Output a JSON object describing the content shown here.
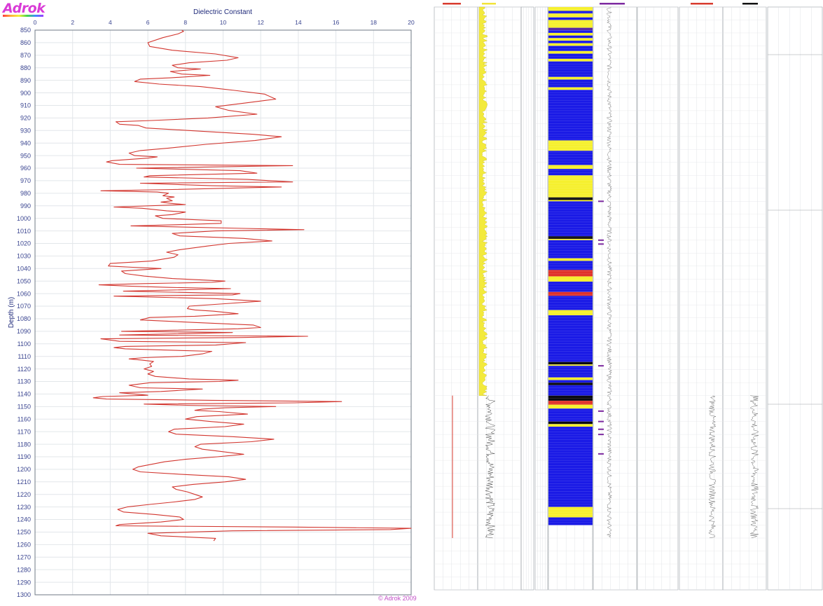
{
  "logo": {
    "text": "Adrok"
  },
  "copyright": "© Adrok 2009",
  "chart_data": {
    "type": "line",
    "title": "Dielectric Constant",
    "xlabel": "Dielectric Constant",
    "ylabel": "Depth (m)",
    "xlim": [
      0,
      20
    ],
    "ylim": [
      1300,
      850
    ],
    "x_ticks": [
      0,
      2,
      4,
      6,
      8,
      10,
      12,
      14,
      16,
      18,
      20
    ],
    "y_ticks": [
      850,
      860,
      870,
      880,
      890,
      900,
      910,
      920,
      930,
      940,
      950,
      960,
      970,
      980,
      990,
      1000,
      1010,
      1020,
      1030,
      1040,
      1050,
      1060,
      1070,
      1080,
      1090,
      1100,
      1110,
      1120,
      1130,
      1140,
      1150,
      1160,
      1170,
      1180,
      1190,
      1200,
      1210,
      1220,
      1230,
      1240,
      1250,
      1260,
      1270,
      1280,
      1290,
      1300
    ],
    "grid": true,
    "color": "#d2352e",
    "series": [
      {
        "points": [
          [
            7.8,
            850
          ],
          [
            7.9,
            851
          ],
          [
            7.6,
            853
          ],
          [
            6.8,
            856
          ],
          [
            6.0,
            860
          ],
          [
            6.1,
            863
          ],
          [
            7.3,
            866
          ],
          [
            9.6,
            869
          ],
          [
            10.8,
            872
          ],
          [
            10.2,
            874
          ],
          [
            8.2,
            876
          ],
          [
            7.3,
            878
          ],
          [
            7.6,
            880
          ],
          [
            8.8,
            881
          ],
          [
            7.2,
            883
          ],
          [
            7.8,
            885
          ],
          [
            9.3,
            886
          ],
          [
            7.2,
            888
          ],
          [
            5.6,
            889
          ],
          [
            5.3,
            891
          ],
          [
            6.6,
            893
          ],
          [
            8.8,
            895
          ],
          [
            10.6,
            898
          ],
          [
            12.2,
            901
          ],
          [
            12.8,
            905
          ],
          [
            11.2,
            908
          ],
          [
            9.6,
            911
          ],
          [
            10.3,
            914
          ],
          [
            11.8,
            917
          ],
          [
            9.2,
            920
          ],
          [
            6.2,
            922
          ],
          [
            4.3,
            923
          ],
          [
            4.5,
            925
          ],
          [
            5.5,
            926
          ],
          [
            5.9,
            928
          ],
          [
            8.2,
            930
          ],
          [
            11.6,
            933
          ],
          [
            13.1,
            935
          ],
          [
            11.7,
            938
          ],
          [
            9.1,
            941
          ],
          [
            7.1,
            944
          ],
          [
            5.6,
            946
          ],
          [
            5.0,
            948
          ],
          [
            5.3,
            950
          ],
          [
            6.5,
            951
          ],
          [
            6.0,
            952
          ],
          [
            4.1,
            954
          ],
          [
            3.8,
            955
          ],
          [
            4.5,
            957
          ],
          [
            13.7,
            958
          ],
          [
            5.4,
            960
          ],
          [
            10.9,
            962
          ],
          [
            11.8,
            964
          ],
          [
            6.1,
            966
          ],
          [
            5.8,
            967
          ],
          [
            11.3,
            969
          ],
          [
            13.7,
            971
          ],
          [
            5.6,
            972
          ],
          [
            9.4,
            974
          ],
          [
            13.1,
            975
          ],
          [
            7.3,
            977
          ],
          [
            3.5,
            978
          ],
          [
            6.5,
            979
          ],
          [
            7.1,
            980
          ],
          [
            6.8,
            982
          ],
          [
            7.4,
            983
          ],
          [
            7.0,
            984
          ],
          [
            7.3,
            986
          ],
          [
            6.7,
            987
          ],
          [
            7.2,
            988
          ],
          [
            8.0,
            989
          ],
          [
            4.2,
            991
          ],
          [
            5.7,
            992
          ],
          [
            7.0,
            994
          ],
          [
            8.0,
            995
          ],
          [
            7.3,
            997
          ],
          [
            6.4,
            998
          ],
          [
            6.8,
            1000
          ],
          [
            9.9,
            1002
          ],
          [
            9.9,
            1004
          ],
          [
            7.8,
            1005
          ],
          [
            5.1,
            1006
          ],
          [
            11.1,
            1008
          ],
          [
            14.3,
            1009
          ],
          [
            9.6,
            1010
          ],
          [
            7.3,
            1012
          ],
          [
            7.7,
            1014
          ],
          [
            11.1,
            1016
          ],
          [
            12.6,
            1018
          ],
          [
            10.3,
            1020
          ],
          [
            9.2,
            1022
          ],
          [
            7.7,
            1025
          ],
          [
            7.0,
            1027
          ],
          [
            7.6,
            1029
          ],
          [
            7.4,
            1031
          ],
          [
            6.2,
            1034
          ],
          [
            4.0,
            1036
          ],
          [
            3.9,
            1038
          ],
          [
            5.2,
            1039
          ],
          [
            6.7,
            1040
          ],
          [
            5.7,
            1041
          ],
          [
            4.6,
            1042
          ],
          [
            4.8,
            1044
          ],
          [
            5.8,
            1046
          ],
          [
            7.3,
            1048
          ],
          [
            10.1,
            1050
          ],
          [
            9.4,
            1051
          ],
          [
            5.8,
            1052
          ],
          [
            3.4,
            1053
          ],
          [
            5.0,
            1054
          ],
          [
            7.1,
            1055
          ],
          [
            10.4,
            1056
          ],
          [
            4.7,
            1058
          ],
          [
            10.9,
            1060
          ],
          [
            10.5,
            1061
          ],
          [
            4.2,
            1062
          ],
          [
            9.6,
            1064
          ],
          [
            12.0,
            1066
          ],
          [
            10.1,
            1068
          ],
          [
            8.2,
            1070
          ],
          [
            8.1,
            1072
          ],
          [
            8.5,
            1073
          ],
          [
            9.5,
            1074
          ],
          [
            10.8,
            1076
          ],
          [
            8.5,
            1078
          ],
          [
            6.1,
            1079
          ],
          [
            5.6,
            1081
          ],
          [
            8.5,
            1083
          ],
          [
            11.6,
            1085
          ],
          [
            12.0,
            1087
          ],
          [
            10.8,
            1088
          ],
          [
            4.6,
            1090
          ],
          [
            10.5,
            1091
          ],
          [
            4.5,
            1093
          ],
          [
            14.5,
            1094
          ],
          [
            10.8,
            1095
          ],
          [
            3.5,
            1096
          ],
          [
            4.5,
            1098
          ],
          [
            11.2,
            1099
          ],
          [
            9.6,
            1101
          ],
          [
            4.8,
            1102
          ],
          [
            4.2,
            1103
          ],
          [
            4.8,
            1104
          ],
          [
            7.0,
            1105
          ],
          [
            9.4,
            1106
          ],
          [
            8.9,
            1108
          ],
          [
            7.8,
            1110
          ],
          [
            5.8,
            1111
          ],
          [
            5.0,
            1112
          ],
          [
            5.7,
            1113
          ],
          [
            6.3,
            1114
          ],
          [
            6.1,
            1116
          ],
          [
            6.2,
            1118
          ],
          [
            5.8,
            1120
          ],
          [
            6.3,
            1122
          ],
          [
            6.0,
            1124
          ],
          [
            6.4,
            1126
          ],
          [
            8.2,
            1128
          ],
          [
            10.8,
            1129
          ],
          [
            9.8,
            1130
          ],
          [
            6.1,
            1131
          ],
          [
            5.0,
            1133
          ],
          [
            5.6,
            1135
          ],
          [
            8.9,
            1136
          ],
          [
            6.7,
            1138
          ],
          [
            4.5,
            1139
          ],
          [
            5.3,
            1140
          ],
          [
            6.0,
            1141
          ],
          [
            3.6,
            1142
          ],
          [
            3.1,
            1143
          ],
          [
            3.8,
            1144
          ],
          [
            9.4,
            1145
          ],
          [
            16.3,
            1146
          ],
          [
            13.8,
            1147
          ],
          [
            5.8,
            1148
          ],
          [
            8.1,
            1149
          ],
          [
            12.8,
            1150
          ],
          [
            10.1,
            1151
          ],
          [
            8.9,
            1152
          ],
          [
            8.5,
            1153
          ],
          [
            9.8,
            1154
          ],
          [
            11.3,
            1156
          ],
          [
            8.6,
            1158
          ],
          [
            8.0,
            1160
          ],
          [
            9.4,
            1162
          ],
          [
            11.1,
            1164
          ],
          [
            10.1,
            1166
          ],
          [
            7.4,
            1168
          ],
          [
            7.1,
            1170
          ],
          [
            7.5,
            1172
          ],
          [
            10.5,
            1174
          ],
          [
            12.7,
            1176
          ],
          [
            11.5,
            1178
          ],
          [
            8.8,
            1180
          ],
          [
            8.5,
            1182
          ],
          [
            8.9,
            1184
          ],
          [
            10.0,
            1186
          ],
          [
            11.1,
            1188
          ],
          [
            9.7,
            1190
          ],
          [
            8.0,
            1192
          ],
          [
            6.9,
            1194
          ],
          [
            6.2,
            1196
          ],
          [
            5.5,
            1198
          ],
          [
            5.2,
            1200
          ],
          [
            5.6,
            1202
          ],
          [
            7.8,
            1204
          ],
          [
            10.3,
            1206
          ],
          [
            11.2,
            1208
          ],
          [
            10.1,
            1210
          ],
          [
            8.4,
            1212
          ],
          [
            7.3,
            1214
          ],
          [
            7.5,
            1216
          ],
          [
            8.1,
            1218
          ],
          [
            8.5,
            1220
          ],
          [
            8.9,
            1222
          ],
          [
            8.5,
            1224
          ],
          [
            7.4,
            1226
          ],
          [
            6.1,
            1228
          ],
          [
            4.9,
            1230
          ],
          [
            4.4,
            1232
          ],
          [
            4.7,
            1234
          ],
          [
            6.4,
            1236
          ],
          [
            7.7,
            1238
          ],
          [
            7.9,
            1240
          ],
          [
            6.7,
            1242
          ],
          [
            4.5,
            1244
          ],
          [
            4.3,
            1245
          ],
          [
            13.7,
            1246
          ],
          [
            20.0,
            1247
          ],
          [
            18.9,
            1248
          ],
          [
            10.5,
            1249
          ],
          [
            6.0,
            1251
          ],
          [
            6.7,
            1253
          ],
          [
            9.6,
            1255
          ],
          [
            9.5,
            1257
          ]
        ]
      }
    ]
  },
  "strip_log": {
    "description_visible": false,
    "bands": [
      {
        "type": "yellow",
        "from": 850,
        "to": 853
      },
      {
        "type": "blue",
        "from": 853,
        "to": 855
      },
      {
        "type": "yellow",
        "from": 855,
        "to": 858
      },
      {
        "type": "blue",
        "from": 858,
        "to": 860
      },
      {
        "type": "yellow",
        "from": 860,
        "to": 866
      },
      {
        "type": "purple",
        "from": 866,
        "to": 868
      },
      {
        "type": "blue",
        "from": 868,
        "to": 870
      },
      {
        "type": "yellow",
        "from": 870,
        "to": 872
      },
      {
        "type": "blue",
        "from": 872,
        "to": 874
      },
      {
        "type": "yellow",
        "from": 874,
        "to": 876
      },
      {
        "type": "blue",
        "from": 876,
        "to": 878
      },
      {
        "type": "yellow",
        "from": 878,
        "to": 880
      },
      {
        "type": "blue",
        "from": 880,
        "to": 884
      },
      {
        "type": "yellow",
        "from": 884,
        "to": 886
      },
      {
        "type": "blue",
        "from": 886,
        "to": 890
      },
      {
        "type": "yellow",
        "from": 890,
        "to": 892
      },
      {
        "type": "blue",
        "from": 892,
        "to": 904
      },
      {
        "type": "yellow",
        "from": 904,
        "to": 906
      },
      {
        "type": "blue",
        "from": 906,
        "to": 912
      },
      {
        "type": "yellow",
        "from": 912,
        "to": 914
      },
      {
        "type": "blue",
        "from": 914,
        "to": 953
      },
      {
        "type": "yellow",
        "from": 953,
        "to": 961
      },
      {
        "type": "blue",
        "from": 961,
        "to": 972
      },
      {
        "type": "yellow",
        "from": 972,
        "to": 975
      },
      {
        "type": "blue",
        "from": 975,
        "to": 980
      },
      {
        "type": "yellow",
        "from": 980,
        "to": 997
      },
      {
        "type": "black",
        "from": 997,
        "to": 999
      },
      {
        "type": "yellow",
        "from": 999,
        "to": 1000
      },
      {
        "type": "blue",
        "from": 1000,
        "to": 1027
      },
      {
        "type": "black",
        "from": 1027,
        "to": 1029
      },
      {
        "type": "yellow",
        "from": 1029,
        "to": 1030
      },
      {
        "type": "blue",
        "from": 1030,
        "to": 1044
      },
      {
        "type": "yellow",
        "from": 1044,
        "to": 1046
      },
      {
        "type": "blue",
        "from": 1046,
        "to": 1053
      },
      {
        "type": "red",
        "from": 1053,
        "to": 1058
      },
      {
        "type": "yellow",
        "from": 1058,
        "to": 1062
      },
      {
        "type": "blue",
        "from": 1062,
        "to": 1070
      },
      {
        "type": "red",
        "from": 1070,
        "to": 1073
      },
      {
        "type": "blue",
        "from": 1073,
        "to": 1084
      },
      {
        "type": "yellow",
        "from": 1084,
        "to": 1088
      },
      {
        "type": "blue",
        "from": 1088,
        "to": 1124
      },
      {
        "type": "black",
        "from": 1124,
        "to": 1126
      },
      {
        "type": "yellow",
        "from": 1126,
        "to": 1127
      },
      {
        "type": "blue",
        "from": 1127,
        "to": 1136
      },
      {
        "type": "yellow",
        "from": 1136,
        "to": 1138
      },
      {
        "type": "blue",
        "from": 1138,
        "to": 1140
      },
      {
        "type": "black",
        "from": 1140,
        "to": 1142
      },
      {
        "type": "blue",
        "from": 1142,
        "to": 1150
      },
      {
        "type": "black",
        "from": 1150,
        "to": 1154
      },
      {
        "type": "red",
        "from": 1154,
        "to": 1157
      },
      {
        "type": "yellow",
        "from": 1157,
        "to": 1160
      },
      {
        "type": "blue",
        "from": 1160,
        "to": 1170
      },
      {
        "type": "black",
        "from": 1170,
        "to": 1172
      },
      {
        "type": "yellow",
        "from": 1172,
        "to": 1174
      },
      {
        "type": "blue",
        "from": 1174,
        "to": 1236
      },
      {
        "type": "yellow",
        "from": 1236,
        "to": 1244
      },
      {
        "type": "blue",
        "from": 1244,
        "to": 1250
      }
    ]
  }
}
